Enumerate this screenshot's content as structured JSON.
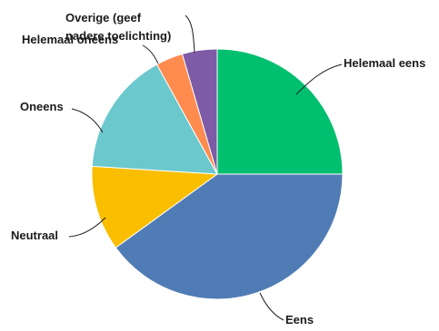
{
  "chart_data": {
    "type": "pie",
    "title": "",
    "slices": [
      {
        "label": "Helemaal eens",
        "value": 25,
        "color": "#00BF6F"
      },
      {
        "label": "Eens",
        "value": 40,
        "color": "#507CB6"
      },
      {
        "label": "Neutraal",
        "value": 11,
        "color": "#F9BE00"
      },
      {
        "label": "Oneens",
        "value": 16,
        "color": "#6BC8CD"
      },
      {
        "label": "Helemaal oneens",
        "value": 3.5,
        "color": "#FF8B4F"
      },
      {
        "label": "Overige (geef nadere toelichting)",
        "value": 4.5,
        "color": "#7D5BA6"
      }
    ],
    "legend": "none"
  }
}
